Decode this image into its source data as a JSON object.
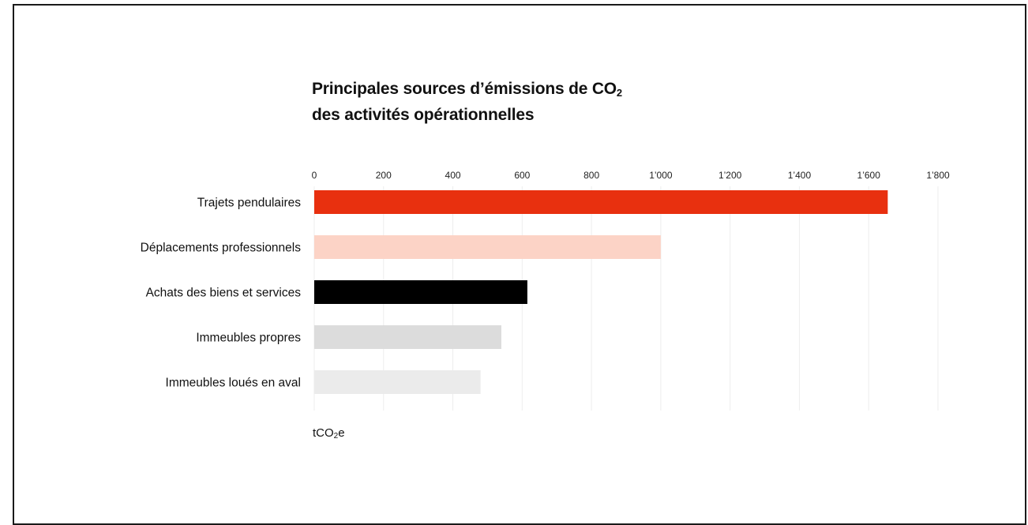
{
  "chart_data": {
    "type": "bar",
    "orientation": "horizontal",
    "title_main": "Principales sources d’émissions de CO",
    "title_sub": "2",
    "title_line2": "des activités opérationnelles",
    "unit_prefix": "tCO",
    "unit_sub": "2",
    "unit_suffix": "e",
    "categories": [
      "Trajets pendulaires",
      "Déplacements professionnels",
      "Achats des biens et services",
      "Immeubles propres",
      "Immeubles loués en aval"
    ],
    "values": [
      1655,
      1000,
      615,
      540,
      480
    ],
    "colors": [
      "#e8300f",
      "#fcd3c6",
      "#000000",
      "#dcdcdc",
      "#ebebeb"
    ],
    "xlim": [
      0,
      1800
    ],
    "xticks": [
      0,
      200,
      400,
      600,
      800,
      1000,
      1200,
      1400,
      1600,
      1800
    ],
    "xtick_labels": [
      "0",
      "200",
      "400",
      "600",
      "800",
      "1’000",
      "1’200",
      "1’400",
      "1’600",
      "1’800"
    ],
    "grid": true,
    "axis_position": "top",
    "legend": "none"
  }
}
